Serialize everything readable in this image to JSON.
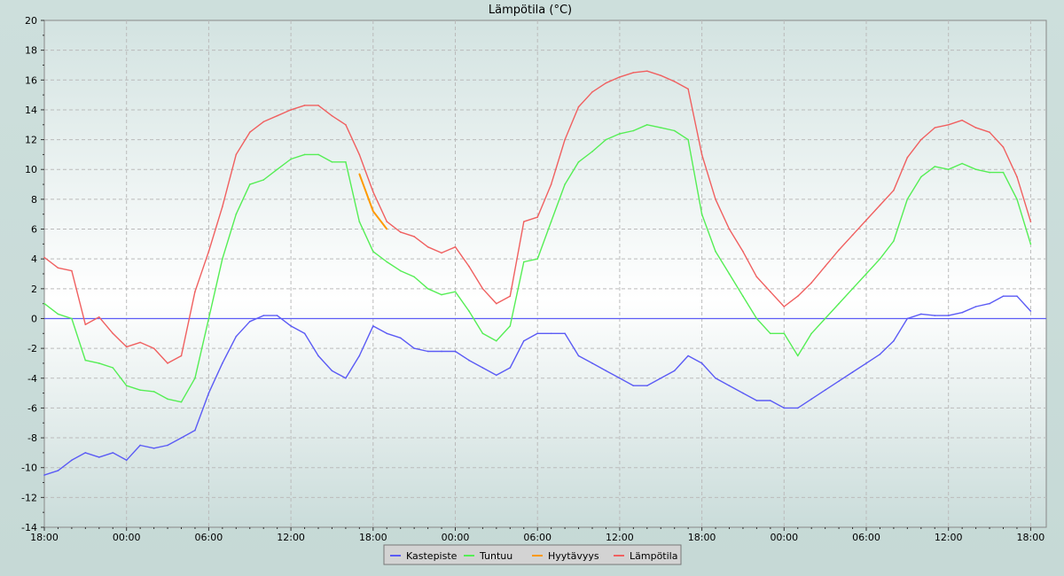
{
  "chart_data": {
    "type": "line",
    "title": "Lämpötila (°C)",
    "xlabel": "",
    "ylabel": "",
    "ylim": [
      -14,
      20
    ],
    "y_ticks": [
      -14,
      -12,
      -10,
      -8,
      -6,
      -4,
      -2,
      0,
      2,
      4,
      6,
      8,
      10,
      12,
      14,
      16,
      18,
      20
    ],
    "x_tick_labels": [
      "18:00",
      "00:00",
      "06:00",
      "12:00",
      "18:00",
      "00:00",
      "06:00",
      "12:00",
      "18:00",
      "00:00",
      "06:00",
      "12:00",
      "18:00"
    ],
    "grid": true,
    "legend_placement": "bottom-center",
    "reference_line": {
      "value": 0,
      "color": "#5b5bf5"
    },
    "x": [
      "18:00",
      "19:00",
      "20:00",
      "21:00",
      "22:00",
      "23:00",
      "00:00",
      "01:00",
      "02:00",
      "03:00",
      "04:00",
      "05:00",
      "06:00",
      "07:00",
      "08:00",
      "09:00",
      "10:00",
      "11:00",
      "12:00",
      "13:00",
      "14:00",
      "15:00",
      "16:00",
      "17:00",
      "18:00",
      "19:00",
      "20:00",
      "21:00",
      "22:00",
      "23:00",
      "00:00",
      "01:00",
      "02:00",
      "03:00",
      "04:00",
      "05:00",
      "06:00",
      "07:00",
      "08:00",
      "09:00",
      "10:00",
      "11:00",
      "12:00",
      "13:00",
      "14:00",
      "15:00",
      "16:00",
      "17:00",
      "18:00",
      "19:00",
      "20:00",
      "21:00",
      "22:00",
      "23:00",
      "00:00",
      "01:00",
      "02:00",
      "03:00",
      "04:00",
      "05:00",
      "06:00",
      "07:00",
      "08:00",
      "09:00",
      "10:00",
      "11:00",
      "12:00",
      "13:00",
      "14:00",
      "15:00",
      "16:00",
      "17:00",
      "18:00"
    ],
    "series": [
      {
        "name": "Kastepiste",
        "color": "#5b5bf5",
        "values": [
          -10.5,
          -10.2,
          -9.5,
          -9.0,
          -9.3,
          -9.0,
          -9.5,
          -8.5,
          -8.7,
          -8.5,
          -8.0,
          -7.5,
          -5.0,
          -3.0,
          -1.2,
          -0.2,
          0.2,
          0.2,
          -0.5,
          -1.0,
          -2.5,
          -3.5,
          -4.0,
          -2.5,
          -0.5,
          -1.0,
          -1.3,
          -2.0,
          -2.2,
          -2.2,
          -2.2,
          -2.8,
          -3.3,
          -3.8,
          -3.3,
          -1.5,
          -1.0,
          -1.0,
          -1.0,
          -2.5,
          -3.0,
          -3.5,
          -4.0,
          -4.5,
          -4.5,
          -4.0,
          -3.5,
          -2.5,
          -3.0,
          -4.0,
          -4.5,
          -5.0,
          -5.5,
          -5.5,
          -6.0,
          -6.0,
          -5.4,
          -4.8,
          -4.2,
          -3.6,
          -3.0,
          -2.4,
          -1.5,
          0.0,
          0.3,
          0.2,
          0.2,
          0.4,
          0.8,
          1.0,
          1.5,
          1.5,
          0.5
        ]
      },
      {
        "name": "Tuntuu",
        "color": "#55ee55",
        "values": [
          1.0,
          0.3,
          0.0,
          -2.8,
          -3.0,
          -3.3,
          -4.5,
          -4.8,
          -4.9,
          -5.4,
          -5.6,
          -4.0,
          0.0,
          4.0,
          7.0,
          9.0,
          9.3,
          10.0,
          10.7,
          11.0,
          11.0,
          10.5,
          10.5,
          6.5,
          4.5,
          3.8,
          3.2,
          2.8,
          2.0,
          1.6,
          1.8,
          0.5,
          -1.0,
          -1.5,
          -0.5,
          3.8,
          4.0,
          6.5,
          9.0,
          10.5,
          11.2,
          12.0,
          12.4,
          12.6,
          13.0,
          12.8,
          12.6,
          12.0,
          7.0,
          4.5,
          3.0,
          1.5,
          0.0,
          -1.0,
          -1.0,
          -2.5,
          -1.0,
          0.0,
          1.0,
          2.0,
          3.0,
          4.0,
          5.2,
          8.0,
          9.5,
          10.2,
          10.0,
          10.4,
          10.0,
          9.8,
          9.8,
          8.0,
          5.0
        ]
      },
      {
        "name": "Hyytävyys",
        "color": "#ff9900",
        "values": [
          null,
          null,
          null,
          null,
          null,
          null,
          null,
          null,
          null,
          null,
          null,
          null,
          null,
          null,
          null,
          null,
          null,
          null,
          null,
          null,
          null,
          null,
          null,
          9.7,
          7.2,
          6.0,
          null,
          null,
          null,
          null,
          null,
          null,
          null,
          null,
          null,
          null,
          null,
          null,
          null,
          null,
          null,
          null,
          null,
          null,
          null,
          null,
          null,
          null,
          null,
          null,
          null,
          null,
          null,
          null,
          null,
          null,
          null,
          null,
          null,
          null,
          null,
          null,
          null,
          null,
          null,
          null,
          null,
          null,
          null,
          null,
          null,
          null,
          null
        ]
      },
      {
        "name": "Lämpötila",
        "color": "#f06060",
        "values": [
          4.1,
          3.4,
          3.2,
          -0.4,
          0.1,
          -1.0,
          -1.9,
          -1.6,
          -2.0,
          -3.0,
          -2.5,
          1.8,
          4.5,
          7.5,
          11.0,
          12.5,
          13.2,
          13.6,
          14.0,
          14.3,
          14.3,
          13.6,
          13.0,
          11.0,
          8.5,
          6.5,
          5.8,
          5.5,
          4.8,
          4.4,
          4.8,
          3.5,
          2.0,
          1.0,
          1.5,
          6.5,
          6.8,
          9.0,
          12.0,
          14.2,
          15.2,
          15.8,
          16.2,
          16.5,
          16.6,
          16.3,
          15.9,
          15.4,
          11.0,
          8.0,
          6.0,
          4.5,
          2.8,
          1.8,
          0.8,
          1.5,
          2.4,
          3.5,
          4.6,
          5.6,
          6.6,
          7.6,
          8.6,
          10.8,
          12.0,
          12.8,
          13.0,
          13.3,
          12.8,
          12.5,
          11.5,
          9.5,
          6.5
        ]
      }
    ]
  }
}
